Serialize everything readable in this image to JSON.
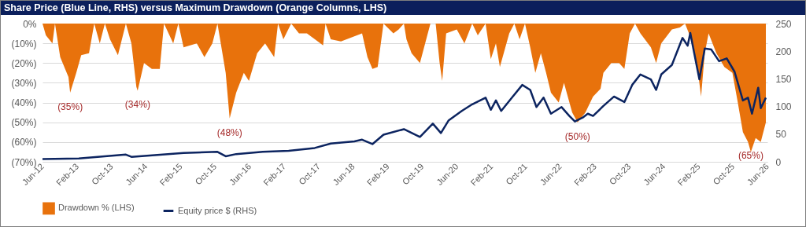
{
  "chart_data": {
    "type": "area",
    "title": "Share Price (Blue Line, RHS) versus Maximum Drawdown (Orange Columns, LHS)",
    "xlim": [
      "2012-06-01",
      "2026-06-01"
    ],
    "xticks": [
      {
        "value": "2012-06-01",
        "label": "Jun-12"
      },
      {
        "value": "2013-02-01",
        "label": "Feb-13"
      },
      {
        "value": "2013-10-01",
        "label": "Oct-13"
      },
      {
        "value": "2014-06-01",
        "label": "Jun-14"
      },
      {
        "value": "2015-02-01",
        "label": "Feb-15"
      },
      {
        "value": "2015-10-01",
        "label": "Oct-15"
      },
      {
        "value": "2016-06-01",
        "label": "Jun-16"
      },
      {
        "value": "2017-02-01",
        "label": "Feb-17"
      },
      {
        "value": "2017-10-01",
        "label": "Oct-17"
      },
      {
        "value": "2018-06-01",
        "label": "Jun-18"
      },
      {
        "value": "2019-02-01",
        "label": "Feb-19"
      },
      {
        "value": "2019-10-01",
        "label": "Oct-19"
      },
      {
        "value": "2020-06-01",
        "label": "Jun-20"
      },
      {
        "value": "2021-02-01",
        "label": "Feb-21"
      },
      {
        "value": "2021-10-01",
        "label": "Oct-21"
      },
      {
        "value": "2022-06-01",
        "label": "Jun-22"
      },
      {
        "value": "2023-02-01",
        "label": "Feb-23"
      },
      {
        "value": "2023-10-01",
        "label": "Oct-23"
      },
      {
        "value": "2024-06-01",
        "label": "Jun-24"
      },
      {
        "value": "2025-02-01",
        "label": "Feb-25"
      },
      {
        "value": "2025-10-01",
        "label": "Oct-25"
      },
      {
        "value": "2026-06-01",
        "label": "Jun-26"
      }
    ],
    "ylim": [
      -70,
      0
    ],
    "yticks": [
      {
        "value": -70,
        "label": "(70%)"
      },
      {
        "value": -60,
        "label": "(60%)"
      },
      {
        "value": -50,
        "label": "(50%)"
      },
      {
        "value": -40,
        "label": "(40%)"
      },
      {
        "value": -30,
        "label": "(30%)"
      },
      {
        "value": -20,
        "label": "(20%)"
      },
      {
        "value": -10,
        "label": "(10%)"
      },
      {
        "value": 0,
        "label": "0%"
      }
    ],
    "y2lim": [
      0,
      250
    ],
    "y2ticks": [
      0,
      50,
      100,
      150,
      200,
      250
    ],
    "grid": "y",
    "legend": "bottom",
    "series": [
      {
        "name": "Drawdown % (LHS)",
        "color": "#e8720c",
        "x": [
          "2012-06-01",
          "2012-06-25",
          "2012-08-10",
          "2012-08-28",
          "2012-10-04",
          "2012-12-01",
          "2012-12-13",
          "2013-01-25",
          "2013-03-01",
          "2013-04-25",
          "2013-06-01",
          "2013-07-10",
          "2013-08-15",
          "2013-09-20",
          "2013-11-15",
          "2014-01-10",
          "2014-02-18",
          "2014-03-25",
          "2014-04-03",
          "2014-05-18",
          "2014-07-12",
          "2014-09-06",
          "2014-10-06",
          "2014-12-10",
          "2015-01-15",
          "2015-02-21",
          "2015-05-25",
          "2015-07-18",
          "2015-09-12",
          "2015-10-18",
          "2015-12-15",
          "2016-01-12",
          "2016-02-27",
          "2016-04-21",
          "2016-05-27",
          "2016-07-24",
          "2016-09-18",
          "2016-11-21",
          "2016-12-18",
          "2017-01-25",
          "2017-03-21",
          "2017-05-15",
          "2017-07-10",
          "2017-11-01",
          "2017-11-18",
          "2017-12-25",
          "2018-03-07",
          "2018-08-03",
          "2018-09-10",
          "2018-10-15",
          "2018-11-21",
          "2019-01-01",
          "2019-03-12",
          "2019-04-18",
          "2019-05-25",
          "2019-06-12",
          "2019-07-18",
          "2019-09-15",
          "2019-11-28",
          "2020-01-04",
          "2020-02-01",
          "2020-02-19",
          "2020-03-18",
          "2020-06-01",
          "2020-07-25",
          "2020-09-18",
          "2020-10-27",
          "2020-12-21",
          "2021-01-27",
          "2021-03-04",
          "2021-04-01",
          "2021-06-06",
          "2021-07-12",
          "2021-08-18",
          "2021-09-25",
          "2021-11-01",
          "2021-12-07",
          "2022-01-15",
          "2022-02-21",
          "2022-03-27",
          "2022-05-21",
          "2022-06-27",
          "2022-08-24",
          "2022-10-01",
          "2022-11-25",
          "2023-01-18",
          "2023-03-12",
          "2023-04-01",
          "2023-05-27",
          "2023-07-21",
          "2023-08-27",
          "2023-10-04",
          "2023-11-10",
          "2023-12-18",
          "2024-03-01",
          "2024-04-07",
          "2024-05-13",
          "2024-07-27",
          "2024-09-21",
          "2024-10-28",
          "2024-12-22",
          "2025-01-28",
          "2025-02-18",
          "2025-03-16",
          "2025-04-12",
          "2025-06-06",
          "2025-08-01",
          "2025-09-27",
          "2025-11-04",
          "2025-12-10",
          "2026-01-15",
          "2026-02-04",
          "2026-03-10",
          "2026-04-15",
          "2026-05-21"
        ],
        "values": [
          0,
          -6,
          -10,
          0,
          -17,
          -27,
          -35,
          -25,
          -16,
          -15,
          0,
          -10,
          0,
          -8,
          -16,
          0,
          -10,
          -32,
          -34,
          -20,
          -23,
          -23,
          0,
          -10,
          0,
          -12,
          -10,
          -17,
          -10,
          0,
          -25,
          -48,
          -35,
          -25,
          -29,
          -15,
          -10,
          -17,
          0,
          -8,
          0,
          -5,
          -5,
          -11,
          0,
          -8,
          -9,
          -5,
          -17,
          -23,
          -22,
          0,
          -5,
          -3,
          0,
          -8,
          -15,
          -20,
          0,
          0,
          -20,
          -29,
          -5,
          -3,
          -10,
          0,
          -6,
          0,
          -18,
          -10,
          -22,
          -5,
          0,
          -8,
          0,
          -12,
          -25,
          -15,
          -25,
          -35,
          -40,
          -30,
          -45,
          -50,
          -45,
          -37,
          -33,
          -25,
          -20,
          -20,
          -23,
          -5,
          0,
          -5,
          -12,
          -20,
          -10,
          -3,
          -2,
          0,
          -10,
          -25,
          -37,
          -15,
          -5,
          -15,
          -22,
          -25,
          -40,
          -55,
          -60,
          -65,
          -58,
          -60,
          -50
        ]
      },
      {
        "name": "Equity price $ (RHS)",
        "type": "line",
        "axis": "y2",
        "color": "#0c2460",
        "x": [
          "2012-06-01",
          "2013-02-12",
          "2014-01-10",
          "2014-02-18",
          "2015-02-21",
          "2015-10-18",
          "2015-12-15",
          "2016-02-27",
          "2016-09-01",
          "2017-03-03",
          "2017-09-03",
          "2017-12-25",
          "2018-06-10",
          "2018-08-03",
          "2018-10-15",
          "2019-01-01",
          "2019-05-25",
          "2019-09-15",
          "2019-12-15",
          "2020-02-10",
          "2020-04-05",
          "2020-07-06",
          "2020-09-18",
          "2020-12-21",
          "2021-01-27",
          "2021-03-04",
          "2021-04-10",
          "2021-06-25",
          "2021-09-06",
          "2021-11-01",
          "2021-12-15",
          "2022-02-03",
          "2022-03-27",
          "2022-06-10",
          "2022-08-04",
          "2022-09-12",
          "2022-11-06",
          "2022-12-12",
          "2023-01-18",
          "2023-04-01",
          "2023-06-15",
          "2023-08-27",
          "2023-10-21",
          "2023-12-18",
          "2024-03-01",
          "2024-04-07",
          "2024-05-13",
          "2024-07-27",
          "2024-10-10",
          "2024-11-15",
          "2024-12-04",
          "2025-01-01",
          "2025-02-06",
          "2025-03-16",
          "2025-05-01",
          "2025-06-25",
          "2025-08-18",
          "2025-10-12",
          "2025-12-10",
          "2026-01-15",
          "2026-02-12",
          "2026-03-28",
          "2026-04-15",
          "2026-05-21"
        ],
        "values": [
          5,
          6,
          13,
          9,
          16,
          18,
          10,
          14,
          18,
          20,
          25,
          33,
          37,
          40,
          32,
          49,
          59,
          45,
          69,
          52,
          75,
          92,
          104,
          116,
          94,
          111,
          92,
          116,
          139,
          130,
          99,
          116,
          87,
          99,
          83,
          73,
          80,
          87,
          83,
          101,
          118,
          108,
          139,
          158,
          149,
          130,
          158,
          175,
          224,
          210,
          233,
          196,
          149,
          205,
          203,
          182,
          187,
          163,
          111,
          116,
          87,
          134,
          97,
          116
        ]
      }
    ],
    "annotations": [
      {
        "text": "(35%)",
        "x": "2012-12-13",
        "y": -35
      },
      {
        "text": "(34%)",
        "x": "2014-04-03",
        "y": -34
      },
      {
        "text": "(48%)",
        "x": "2016-01-12",
        "y": -48
      },
      {
        "text": "(50%)",
        "x": "2022-10-01",
        "y": -50
      },
      {
        "text": "(65%)",
        "x": "2026-02-04",
        "y": -65
      }
    ]
  }
}
